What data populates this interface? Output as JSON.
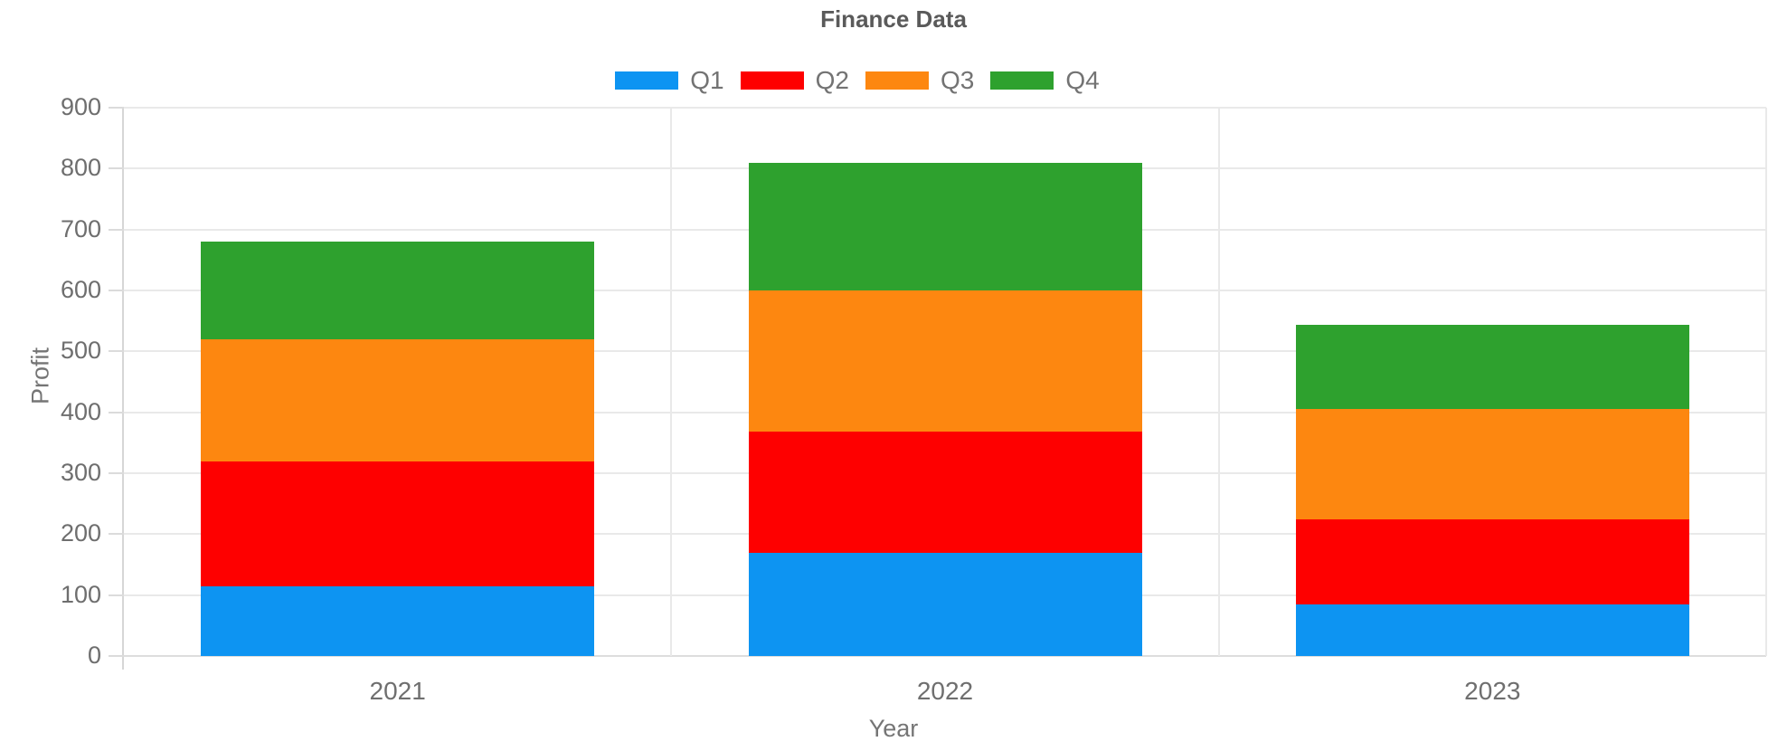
{
  "header": {
    "title": "Finance Data"
  },
  "chart_data": {
    "type": "bar",
    "stacked": true,
    "title": "Finance Data",
    "categories": [
      "2021",
      "2022",
      "2023"
    ],
    "series": [
      {
        "name": "Q1",
        "color": "#0D94F2",
        "values": [
          115,
          170,
          85
        ]
      },
      {
        "name": "Q2",
        "color": "#FE0000",
        "values": [
          205,
          198,
          139
        ]
      },
      {
        "name": "Q3",
        "color": "#FD8710",
        "values": [
          200,
          232,
          181
        ]
      },
      {
        "name": "Q4",
        "color": "#2EA12E",
        "values": [
          160,
          210,
          138
        ]
      }
    ],
    "stacked_totals": [
      680,
      810,
      543
    ],
    "xlabel": "Year",
    "ylabel": "Profit",
    "ylim": [
      0,
      900
    ],
    "ytick_step": 100,
    "y_ticks": [
      0,
      100,
      200,
      300,
      400,
      500,
      600,
      700,
      800,
      900
    ],
    "legend_position": "top",
    "legend_labels": [
      "Q1",
      "Q2",
      "Q3",
      "Q4"
    ],
    "grid": true
  },
  "styles": {
    "grid_color": "#E9E9E9",
    "axis_color": "#D6D6D6",
    "tick_text_color": "#6E6E6E",
    "title_color": "#5A5A5A",
    "axis_label_color": "#757575",
    "background": "#FFFFFF"
  }
}
